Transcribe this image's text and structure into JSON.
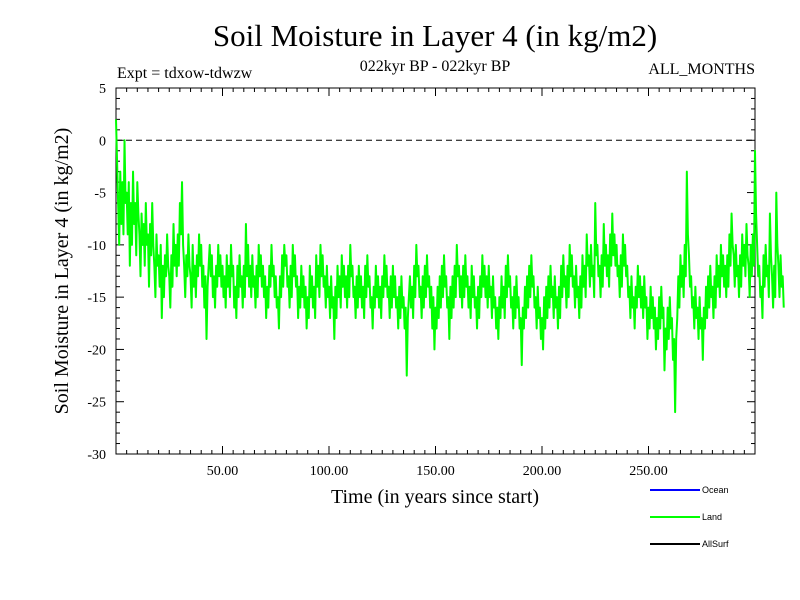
{
  "chart_data": {
    "type": "line",
    "title": "Soil Moisture in Layer 4 (in kg/m2)",
    "subtitle_left": "Expt = tdxow-tdwzw",
    "subtitle_center": "022kyr BP - 022kyr BP",
    "subtitle_right": "ALL_MONTHS",
    "xlabel": "Time (in years since start)",
    "ylabel": "Soil Moisture in Layer 4 (in kg/m2)",
    "xlim": [
      0,
      300
    ],
    "ylim": [
      -30,
      5
    ],
    "x_ticks": [
      50,
      100,
      150,
      200,
      250
    ],
    "x_tick_labels": [
      "50.00",
      "100.00",
      "150.00",
      "200.00",
      "250.00"
    ],
    "y_ticks": [
      5,
      0,
      -5,
      -10,
      -15,
      -20,
      -25,
      -30
    ],
    "y_tick_labels": [
      "5",
      "0",
      "-5",
      "-10",
      "-15",
      "-20",
      "-25",
      "-30"
    ],
    "reference_line": 0,
    "legend_position": "bottom-right",
    "legend": [
      {
        "name": "Ocean",
        "color": "#0000ff"
      },
      {
        "name": "Land",
        "color": "#00ff00"
      },
      {
        "name": "AllSurf",
        "color": "#000000"
      }
    ],
    "series": [
      {
        "name": "Land",
        "color": "#00ff00",
        "x_start": 0,
        "x_step": 0.5,
        "values": [
          2.0,
          -2.0,
          -6.0,
          -10.0,
          -3.0,
          -8.0,
          -4.0,
          -9.0,
          0.0,
          -6.0,
          -5.0,
          -9.0,
          -4.0,
          -12.0,
          -6.0,
          -10.0,
          -3.0,
          -8.0,
          -6.0,
          -11.0,
          -4.0,
          -7.0,
          -9.0,
          -13.0,
          -7.0,
          -10.0,
          -8.0,
          -12.0,
          -6.0,
          -10.0,
          -9.0,
          -14.0,
          -8.0,
          -11.0,
          -6.0,
          -10.0,
          -12.0,
          -15.0,
          -9.0,
          -12.0,
          -11.0,
          -14.0,
          -10.0,
          -17.0,
          -12.0,
          -15.0,
          -11.0,
          -13.0,
          -9.0,
          -12.0,
          -13.0,
          -16.0,
          -11.0,
          -14.0,
          -8.0,
          -12.0,
          -10.0,
          -13.0,
          -9.0,
          -12.0,
          -6.0,
          -9.0,
          -4.0,
          -10.0,
          -12.0,
          -15.0,
          -11.0,
          -13.0,
          -9.0,
          -12.0,
          -13.0,
          -16.0,
          -10.0,
          -14.0,
          -12.0,
          -15.0,
          -11.0,
          -13.0,
          -9.0,
          -12.0,
          -10.0,
          -14.0,
          -12.0,
          -16.0,
          -13.0,
          -19.0,
          -14.0,
          -12.0,
          -10.0,
          -13.0,
          -11.0,
          -15.0,
          -13.0,
          -16.0,
          -12.0,
          -14.0,
          -10.0,
          -13.0,
          -11.0,
          -14.0,
          -12.0,
          -15.0,
          -13.0,
          -16.0,
          -11.0,
          -14.0,
          -12.0,
          -15.0,
          -10.0,
          -13.0,
          -12.0,
          -16.0,
          -14.0,
          -17.0,
          -12.0,
          -15.0,
          -11.0,
          -14.0,
          -13.0,
          -16.0,
          -12.0,
          -15.0,
          -8.0,
          -13.0,
          -10.0,
          -14.0,
          -12.0,
          -15.0,
          -11.0,
          -14.0,
          -13.0,
          -16.0,
          -12.0,
          -15.0,
          -10.0,
          -13.0,
          -11.0,
          -14.0,
          -12.0,
          -15.0,
          -13.0,
          -17.0,
          -14.0,
          -16.0,
          -12.0,
          -14.0,
          -10.0,
          -13.0,
          -12.0,
          -15.0,
          -13.0,
          -16.0,
          -15.0,
          -18.0,
          -13.0,
          -15.0,
          -11.0,
          -14.0,
          -10.0,
          -12.0,
          -11.0,
          -14.0,
          -13.0,
          -16.0,
          -12.0,
          -15.0,
          -10.0,
          -13.0,
          -11.0,
          -14.0,
          -13.0,
          -17.0,
          -14.0,
          -16.0,
          -12.0,
          -15.0,
          -13.0,
          -16.0,
          -14.0,
          -18.0,
          -15.0,
          -17.0,
          -12.0,
          -15.0,
          -13.0,
          -16.0,
          -14.0,
          -17.0,
          -11.0,
          -14.0,
          -12.0,
          -15.0,
          -10.0,
          -13.0,
          -11.0,
          -14.0,
          -13.0,
          -16.0,
          -12.0,
          -15.0,
          -14.0,
          -17.0,
          -13.0,
          -16.0,
          -15.0,
          -19.0,
          -14.0,
          -17.0,
          -12.0,
          -15.0,
          -13.0,
          -16.0,
          -11.0,
          -14.0,
          -12.0,
          -15.0,
          -13.0,
          -16.0,
          -12.0,
          -15.0,
          -10.0,
          -13.0,
          -12.0,
          -15.0,
          -14.0,
          -17.0,
          -13.0,
          -16.0,
          -12.0,
          -15.0,
          -13.0,
          -16.0,
          -14.0,
          -17.0,
          -12.0,
          -15.0,
          -11.0,
          -14.0,
          -13.0,
          -16.0,
          -15.0,
          -18.0,
          -14.0,
          -16.0,
          -12.0,
          -15.0,
          -13.0,
          -16.0,
          -14.0,
          -17.0,
          -13.0,
          -15.0,
          -11.0,
          -14.0,
          -12.0,
          -15.0,
          -14.0,
          -17.0,
          -13.0,
          -16.0,
          -12.0,
          -15.0,
          -13.0,
          -16.0,
          -15.0,
          -18.0,
          -14.0,
          -17.0,
          -13.0,
          -16.0,
          -15.0,
          -18.0,
          -16.0,
          -22.5,
          -17.0,
          -15.0,
          -13.0,
          -16.0,
          -14.0,
          -17.0,
          -12.0,
          -15.0,
          -10.0,
          -13.0,
          -12.0,
          -15.0,
          -14.0,
          -17.0,
          -13.0,
          -16.0,
          -12.0,
          -15.0,
          -11.0,
          -14.0,
          -13.0,
          -16.0,
          -14.0,
          -18.0,
          -15.0,
          -20.0,
          -16.0,
          -18.0,
          -14.0,
          -17.0,
          -13.0,
          -16.0,
          -12.0,
          -15.0,
          -11.0,
          -14.0,
          -13.0,
          -16.0,
          -15.0,
          -19.0,
          -14.0,
          -17.0,
          -13.0,
          -16.0,
          -12.0,
          -15.0,
          -10.0,
          -13.0,
          -12.0,
          -15.0,
          -13.0,
          -16.0,
          -12.0,
          -15.0,
          -11.0,
          -14.0,
          -13.0,
          -16.0,
          -14.0,
          -17.0,
          -12.0,
          -15.0,
          -13.0,
          -16.0,
          -15.0,
          -18.0,
          -14.0,
          -17.0,
          -13.0,
          -15.0,
          -11.0,
          -14.0,
          -12.0,
          -15.0,
          -13.0,
          -16.0,
          -12.0,
          -15.0,
          -14.0,
          -17.0,
          -13.0,
          -16.0,
          -15.0,
          -18.0,
          -16.0,
          -19.0,
          -15.0,
          -17.0,
          -13.0,
          -16.0,
          -14.0,
          -17.0,
          -12.0,
          -15.0,
          -11.0,
          -14.0,
          -13.0,
          -16.0,
          -15.0,
          -18.0,
          -14.0,
          -17.0,
          -13.0,
          -16.0,
          -15.0,
          -18.0,
          -17.0,
          -21.5,
          -16.0,
          -18.0,
          -14.0,
          -17.0,
          -13.0,
          -16.0,
          -12.0,
          -15.0,
          -11.0,
          -14.0,
          -13.0,
          -16.0,
          -15.0,
          -18.0,
          -14.0,
          -17.0,
          -16.0,
          -19.0,
          -17.0,
          -20.0,
          -15.0,
          -18.0,
          -14.0,
          -17.0,
          -13.0,
          -16.0,
          -12.0,
          -15.0,
          -14.0,
          -17.0,
          -13.0,
          -16.0,
          -15.0,
          -18.0,
          -14.0,
          -17.0,
          -12.0,
          -15.0,
          -11.0,
          -14.0,
          -13.0,
          -16.0,
          -12.0,
          -15.0,
          -10.0,
          -13.0,
          -11.0,
          -14.0,
          -13.0,
          -16.0,
          -12.0,
          -15.0,
          -14.0,
          -17.0,
          -13.0,
          -16.0,
          -11.0,
          -14.0,
          -12.0,
          -15.0,
          -9.0,
          -12.0,
          -11.0,
          -14.0,
          -10.0,
          -13.0,
          -12.0,
          -15.0,
          -6.0,
          -11.0,
          -10.0,
          -13.0,
          -12.0,
          -15.0,
          -11.0,
          -14.0,
          -8.0,
          -12.0,
          -10.0,
          -13.0,
          -11.0,
          -14.0,
          -9.0,
          -12.0,
          -7.0,
          -11.0,
          -9.0,
          -12.0,
          -10.0,
          -13.0,
          -12.0,
          -15.0,
          -11.0,
          -14.0,
          -9.0,
          -12.0,
          -10.0,
          -13.0,
          -12.0,
          -15.0,
          -14.0,
          -17.0,
          -13.0,
          -16.0,
          -15.0,
          -18.0,
          -14.0,
          -16.0,
          -12.0,
          -15.0,
          -13.0,
          -16.0,
          -14.0,
          -17.0,
          -13.0,
          -16.0,
          -15.0,
          -19.0,
          -16.0,
          -18.0,
          -14.0,
          -17.0,
          -15.0,
          -18.0,
          -16.0,
          -20.0,
          -17.0,
          -19.0,
          -15.0,
          -18.0,
          -14.0,
          -17.0,
          -16.0,
          -22.0,
          -18.0,
          -20.0,
          -16.0,
          -19.0,
          -15.0,
          -18.0,
          -17.0,
          -21.0,
          -19.0,
          -26.0,
          -19.0,
          -17.0,
          -13.0,
          -16.0,
          -11.0,
          -14.0,
          -12.0,
          -15.0,
          -10.0,
          -13.0,
          -3.0,
          -9.0,
          -11.0,
          -14.0,
          -13.0,
          -16.0,
          -15.0,
          -18.0,
          -14.0,
          -17.0,
          -16.0,
          -19.0,
          -15.0,
          -18.0,
          -17.0,
          -21.0,
          -16.0,
          -18.0,
          -14.0,
          -17.0,
          -13.0,
          -16.0,
          -12.0,
          -15.0,
          -14.0,
          -17.0,
          -13.0,
          -16.0,
          -11.0,
          -14.0,
          -12.0,
          -15.0,
          -10.0,
          -13.0,
          -11.0,
          -14.0,
          -12.0,
          -15.0,
          -11.0,
          -14.0,
          -9.0,
          -12.0,
          -7.0,
          -10.0,
          -11.0,
          -14.0,
          -10.0,
          -13.0,
          -12.0,
          -15.0,
          -11.0,
          -14.0,
          -9.0,
          -12.0,
          -10.0,
          -13.0,
          -8.0,
          -11.0,
          -12.0,
          -15.0,
          -10.0,
          -13.0,
          -9.0,
          -12.0,
          -1.0,
          -7.0,
          -10.0,
          -13.0,
          -12.0,
          -15.0,
          -14.0,
          -17.0,
          -11.0,
          -14.0,
          -10.0,
          -13.0,
          -12.0,
          -15.0,
          -7.0,
          -11.0,
          -13.0,
          -16.0,
          -12.0,
          -15.0,
          -5.0,
          -10.0,
          -12.0,
          -15.0,
          -11.0,
          -14.0,
          -13.0,
          -16.0
        ]
      }
    ]
  }
}
